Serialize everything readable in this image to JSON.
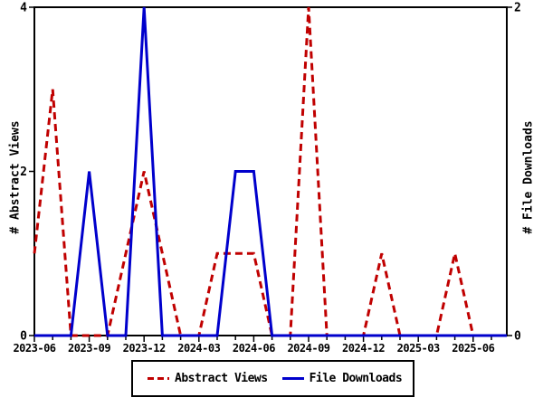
{
  "chart_data": {
    "type": "line",
    "title": "",
    "x": [
      "2023-06",
      "2023-07",
      "2023-08",
      "2023-09",
      "2023-10",
      "2023-11",
      "2023-12",
      "2024-01",
      "2024-02",
      "2024-03",
      "2024-04",
      "2024-05",
      "2024-06",
      "2024-07",
      "2024-08",
      "2024-09",
      "2024-10",
      "2024-11",
      "2024-12",
      "2025-01",
      "2025-02",
      "2025-03",
      "2025-04",
      "2025-05",
      "2025-06",
      "2025-07"
    ],
    "x_major_tick_labels": [
      "2023-06",
      "2023-09",
      "2023-12",
      "2024-03",
      "2024-06",
      "2024-09",
      "2024-12",
      "2025-03",
      "2025-06"
    ],
    "x_major_every": 3,
    "series": [
      {
        "name": "Abstract Views",
        "axis": "left",
        "color": "#c00000",
        "style": "dashed",
        "values": [
          1,
          3,
          0,
          0,
          0,
          1,
          2,
          1,
          0,
          0,
          1,
          1,
          1,
          0,
          0,
          4,
          0,
          0,
          0,
          1,
          0,
          0,
          0,
          1,
          0,
          0
        ]
      },
      {
        "name": "File Downloads",
        "axis": "right",
        "color": "#0000cc",
        "style": "solid",
        "values": [
          0,
          0,
          0,
          1,
          0,
          0,
          2,
          0,
          0,
          0,
          0,
          1,
          1,
          0,
          0,
          0,
          0,
          0,
          0,
          0,
          0,
          0,
          0,
          0,
          0,
          0
        ]
      }
    ],
    "left_axis": {
      "label": "# Abstract Views",
      "min": 0,
      "max": 4,
      "ticks": [
        0,
        2,
        4
      ]
    },
    "right_axis": {
      "label": "# File Downloads",
      "min": 0,
      "max": 2,
      "ticks": [
        0,
        2
      ]
    },
    "legend_position": "bottom",
    "grid": "off",
    "plot_border": "box",
    "colors": {
      "axis": "#000000",
      "background": "#ffffff"
    }
  }
}
